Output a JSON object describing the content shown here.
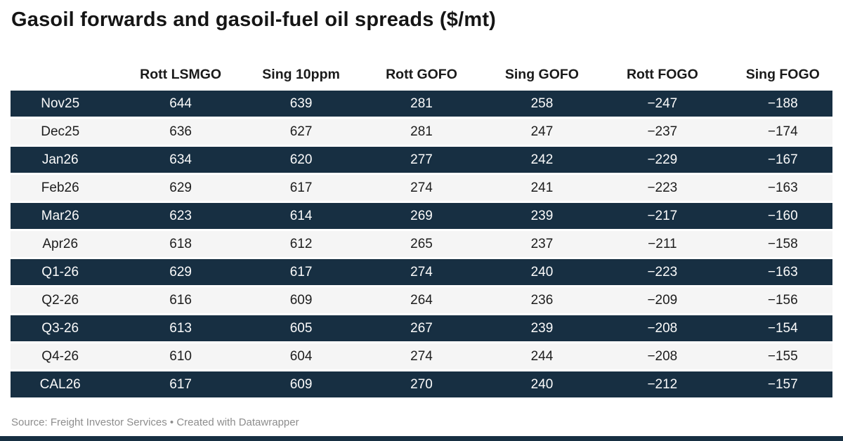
{
  "title": "Gasoil forwards and gasoil-fuel oil spreads ($/mt)",
  "table": {
    "columns": [
      "",
      "Rott LSMGO",
      "Sing 10ppm",
      "Rott GOFO",
      "Sing GOFO",
      "Rott FOGO",
      "Sing FOGO"
    ],
    "rows": [
      {
        "label": "Nov25",
        "values": [
          "644",
          "639",
          "281",
          "258",
          "−247",
          "−188"
        ]
      },
      {
        "label": "Dec25",
        "values": [
          "636",
          "627",
          "281",
          "247",
          "−237",
          "−174"
        ]
      },
      {
        "label": "Jan26",
        "values": [
          "634",
          "620",
          "277",
          "242",
          "−229",
          "−167"
        ]
      },
      {
        "label": "Feb26",
        "values": [
          "629",
          "617",
          "274",
          "241",
          "−223",
          "−163"
        ]
      },
      {
        "label": "Mar26",
        "values": [
          "623",
          "614",
          "269",
          "239",
          "−217",
          "−160"
        ]
      },
      {
        "label": "Apr26",
        "values": [
          "618",
          "612",
          "265",
          "237",
          "−211",
          "−158"
        ]
      },
      {
        "label": "Q1-26",
        "values": [
          "629",
          "617",
          "274",
          "240",
          "−223",
          "−163"
        ]
      },
      {
        "label": "Q2-26",
        "values": [
          "616",
          "609",
          "264",
          "236",
          "−209",
          "−156"
        ]
      },
      {
        "label": "Q3-26",
        "values": [
          "613",
          "605",
          "267",
          "239",
          "−208",
          "−154"
        ]
      },
      {
        "label": "Q4-26",
        "values": [
          "610",
          "604",
          "274",
          "244",
          "−208",
          "−155"
        ]
      },
      {
        "label": "CAL26",
        "values": [
          "617",
          "609",
          "270",
          "240",
          "−212",
          "−157"
        ]
      }
    ]
  },
  "footer": {
    "source_line": "Source: Freight Investor Services • Created with Datawrapper"
  },
  "colors": {
    "dark_row_bg": "#172f42",
    "dark_row_text": "#fbfbfb",
    "light_row_bg": "#f5f5f5",
    "light_row_text": "#1d1d1d",
    "accent_bar": "#172f42"
  },
  "chart_data": {
    "type": "table",
    "title": "Gasoil forwards and gasoil-fuel oil spreads ($/mt)",
    "categories": [
      "Nov25",
      "Dec25",
      "Jan26",
      "Feb26",
      "Mar26",
      "Apr26",
      "Q1-26",
      "Q2-26",
      "Q3-26",
      "Q4-26",
      "CAL26"
    ],
    "series": [
      {
        "name": "Rott LSMGO",
        "values": [
          644,
          636,
          634,
          629,
          623,
          618,
          629,
          616,
          613,
          610,
          617
        ]
      },
      {
        "name": "Sing 10ppm",
        "values": [
          639,
          627,
          620,
          617,
          614,
          612,
          617,
          609,
          605,
          604,
          609
        ]
      },
      {
        "name": "Rott GOFO",
        "values": [
          281,
          281,
          277,
          274,
          269,
          265,
          274,
          264,
          267,
          274,
          270
        ]
      },
      {
        "name": "Sing GOFO",
        "values": [
          258,
          247,
          242,
          241,
          239,
          237,
          240,
          236,
          239,
          244,
          240
        ]
      },
      {
        "name": "Rott FOGO",
        "values": [
          -247,
          -237,
          -229,
          -223,
          -217,
          -211,
          -223,
          -209,
          -208,
          -208,
          -212
        ]
      },
      {
        "name": "Sing FOGO",
        "values": [
          -188,
          -174,
          -167,
          -163,
          -160,
          -158,
          -163,
          -156,
          -154,
          -155,
          -157
        ]
      }
    ],
    "source": "Source: Freight Investor Services • Created with Datawrapper",
    "layout": {
      "striped_rows": "alternating dark navy / light gray, first row dark",
      "alignment": "center",
      "grid": false
    }
  }
}
